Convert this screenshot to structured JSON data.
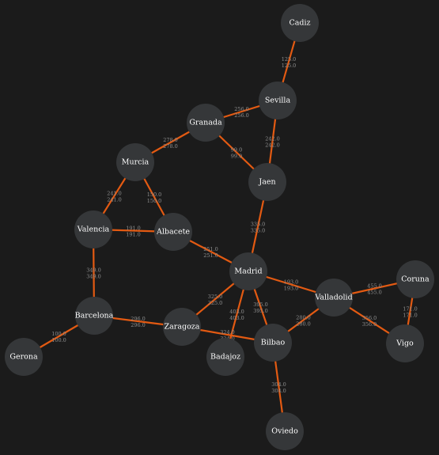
{
  "graph": {
    "colors": {
      "background": "#1b1b1b",
      "edge": "#e35a12",
      "node_fill": "#353739",
      "node_text": "#ffffff",
      "edge_text": "#8f8f8f"
    },
    "nodes": [
      {
        "id": "cadiz",
        "label": "Cadiz"
      },
      {
        "id": "sevilla",
        "label": "Sevilla"
      },
      {
        "id": "granada",
        "label": "Granada"
      },
      {
        "id": "murcia",
        "label": "Murcia"
      },
      {
        "id": "jaen",
        "label": "Jaen"
      },
      {
        "id": "valencia",
        "label": "Valencia"
      },
      {
        "id": "albacete",
        "label": "Albacete"
      },
      {
        "id": "madrid",
        "label": "Madrid"
      },
      {
        "id": "barcelona",
        "label": "Barcelona"
      },
      {
        "id": "zaragoza",
        "label": "Zaragoza"
      },
      {
        "id": "valladolid",
        "label": "Valladolid"
      },
      {
        "id": "coruna",
        "label": "Coruna"
      },
      {
        "id": "vigo",
        "label": "Vigo"
      },
      {
        "id": "bilbao",
        "label": "Bilbao"
      },
      {
        "id": "badajoz",
        "label": "Badajoz"
      },
      {
        "id": "gerona",
        "label": "Gerona"
      },
      {
        "id": "oviedo",
        "label": "Oviedo"
      }
    ],
    "edges": [
      {
        "from": "cadiz",
        "to": "sevilla",
        "label_a": "125.0",
        "label_b": "125.0"
      },
      {
        "from": "sevilla",
        "to": "granada",
        "label_a": "256.0",
        "label_b": "256.0"
      },
      {
        "from": "sevilla",
        "to": "jaen",
        "label_a": "242.0",
        "label_b": "242.0"
      },
      {
        "from": "granada",
        "to": "murcia",
        "label_a": "278.0",
        "label_b": "278.0"
      },
      {
        "from": "granada",
        "to": "jaen",
        "label_a": "99.0",
        "label_b": "99.0"
      },
      {
        "from": "murcia",
        "to": "valencia",
        "label_a": "241.0",
        "label_b": "241.0"
      },
      {
        "from": "murcia",
        "to": "albacete",
        "label_a": "150.0",
        "label_b": "150.0"
      },
      {
        "from": "valencia",
        "to": "albacete",
        "label_a": "191.0",
        "label_b": "191.0"
      },
      {
        "from": "valencia",
        "to": "barcelona",
        "label_a": "349.0",
        "label_b": "349.0"
      },
      {
        "from": "albacete",
        "to": "madrid",
        "label_a": "251.0",
        "label_b": "251.0"
      },
      {
        "from": "jaen",
        "to": "madrid",
        "label_a": "335.0",
        "label_b": "335.0"
      },
      {
        "from": "madrid",
        "to": "zaragoza",
        "label_a": "325.0",
        "label_b": "325.0"
      },
      {
        "from": "madrid",
        "to": "valladolid",
        "label_a": "193.0",
        "label_b": "193.0"
      },
      {
        "from": "madrid",
        "to": "bilbao",
        "label_a": "395.0",
        "label_b": "395.0"
      },
      {
        "from": "madrid",
        "to": "badajoz",
        "label_a": "403.0",
        "label_b": "403.0"
      },
      {
        "from": "barcelona",
        "to": "zaragoza",
        "label_a": "296.0",
        "label_b": "296.0"
      },
      {
        "from": "barcelona",
        "to": "gerona",
        "label_a": "100.0",
        "label_b": "100.0"
      },
      {
        "from": "zaragoza",
        "to": "bilbao",
        "label_a": "324.0",
        "label_b": "324.0"
      },
      {
        "from": "valladolid",
        "to": "bilbao",
        "label_a": "280.0",
        "label_b": "280.0"
      },
      {
        "from": "valladolid",
        "to": "coruna",
        "label_a": "455.0",
        "label_b": "455.0"
      },
      {
        "from": "valladolid",
        "to": "vigo",
        "label_a": "356.0",
        "label_b": "356.0"
      },
      {
        "from": "coruna",
        "to": "vigo",
        "label_a": "171.0",
        "label_b": "171.0"
      },
      {
        "from": "bilbao",
        "to": "oviedo",
        "label_a": "304.0",
        "label_b": "304.0"
      }
    ]
  }
}
